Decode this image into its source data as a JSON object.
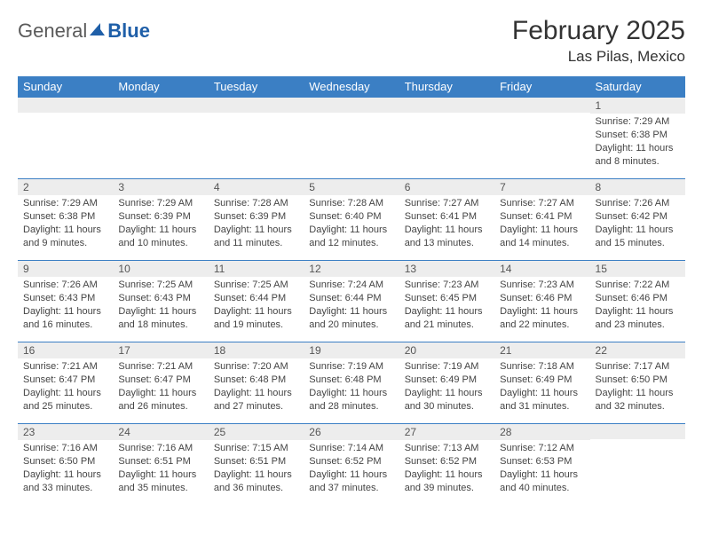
{
  "logo": {
    "text1": "General",
    "text2": "Blue",
    "color_gray": "#6a6a6a",
    "color_blue": "#1f5fa8"
  },
  "title": "February 2025",
  "location": "Las Pilas, Mexico",
  "header_bg": "#3b7fc4",
  "daynum_bg": "#ededed",
  "days": [
    "Sunday",
    "Monday",
    "Tuesday",
    "Wednesday",
    "Thursday",
    "Friday",
    "Saturday"
  ],
  "weeks": [
    [
      {
        "n": "",
        "lines": []
      },
      {
        "n": "",
        "lines": []
      },
      {
        "n": "",
        "lines": []
      },
      {
        "n": "",
        "lines": []
      },
      {
        "n": "",
        "lines": []
      },
      {
        "n": "",
        "lines": []
      },
      {
        "n": "1",
        "lines": [
          "Sunrise: 7:29 AM",
          "Sunset: 6:38 PM",
          "Daylight: 11 hours and 8 minutes."
        ]
      }
    ],
    [
      {
        "n": "2",
        "lines": [
          "Sunrise: 7:29 AM",
          "Sunset: 6:38 PM",
          "Daylight: 11 hours and 9 minutes."
        ]
      },
      {
        "n": "3",
        "lines": [
          "Sunrise: 7:29 AM",
          "Sunset: 6:39 PM",
          "Daylight: 11 hours and 10 minutes."
        ]
      },
      {
        "n": "4",
        "lines": [
          "Sunrise: 7:28 AM",
          "Sunset: 6:39 PM",
          "Daylight: 11 hours and 11 minutes."
        ]
      },
      {
        "n": "5",
        "lines": [
          "Sunrise: 7:28 AM",
          "Sunset: 6:40 PM",
          "Daylight: 11 hours and 12 minutes."
        ]
      },
      {
        "n": "6",
        "lines": [
          "Sunrise: 7:27 AM",
          "Sunset: 6:41 PM",
          "Daylight: 11 hours and 13 minutes."
        ]
      },
      {
        "n": "7",
        "lines": [
          "Sunrise: 7:27 AM",
          "Sunset: 6:41 PM",
          "Daylight: 11 hours and 14 minutes."
        ]
      },
      {
        "n": "8",
        "lines": [
          "Sunrise: 7:26 AM",
          "Sunset: 6:42 PM",
          "Daylight: 11 hours and 15 minutes."
        ]
      }
    ],
    [
      {
        "n": "9",
        "lines": [
          "Sunrise: 7:26 AM",
          "Sunset: 6:43 PM",
          "Daylight: 11 hours and 16 minutes."
        ]
      },
      {
        "n": "10",
        "lines": [
          "Sunrise: 7:25 AM",
          "Sunset: 6:43 PM",
          "Daylight: 11 hours and 18 minutes."
        ]
      },
      {
        "n": "11",
        "lines": [
          "Sunrise: 7:25 AM",
          "Sunset: 6:44 PM",
          "Daylight: 11 hours and 19 minutes."
        ]
      },
      {
        "n": "12",
        "lines": [
          "Sunrise: 7:24 AM",
          "Sunset: 6:44 PM",
          "Daylight: 11 hours and 20 minutes."
        ]
      },
      {
        "n": "13",
        "lines": [
          "Sunrise: 7:23 AM",
          "Sunset: 6:45 PM",
          "Daylight: 11 hours and 21 minutes."
        ]
      },
      {
        "n": "14",
        "lines": [
          "Sunrise: 7:23 AM",
          "Sunset: 6:46 PM",
          "Daylight: 11 hours and 22 minutes."
        ]
      },
      {
        "n": "15",
        "lines": [
          "Sunrise: 7:22 AM",
          "Sunset: 6:46 PM",
          "Daylight: 11 hours and 23 minutes."
        ]
      }
    ],
    [
      {
        "n": "16",
        "lines": [
          "Sunrise: 7:21 AM",
          "Sunset: 6:47 PM",
          "Daylight: 11 hours and 25 minutes."
        ]
      },
      {
        "n": "17",
        "lines": [
          "Sunrise: 7:21 AM",
          "Sunset: 6:47 PM",
          "Daylight: 11 hours and 26 minutes."
        ]
      },
      {
        "n": "18",
        "lines": [
          "Sunrise: 7:20 AM",
          "Sunset: 6:48 PM",
          "Daylight: 11 hours and 27 minutes."
        ]
      },
      {
        "n": "19",
        "lines": [
          "Sunrise: 7:19 AM",
          "Sunset: 6:48 PM",
          "Daylight: 11 hours and 28 minutes."
        ]
      },
      {
        "n": "20",
        "lines": [
          "Sunrise: 7:19 AM",
          "Sunset: 6:49 PM",
          "Daylight: 11 hours and 30 minutes."
        ]
      },
      {
        "n": "21",
        "lines": [
          "Sunrise: 7:18 AM",
          "Sunset: 6:49 PM",
          "Daylight: 11 hours and 31 minutes."
        ]
      },
      {
        "n": "22",
        "lines": [
          "Sunrise: 7:17 AM",
          "Sunset: 6:50 PM",
          "Daylight: 11 hours and 32 minutes."
        ]
      }
    ],
    [
      {
        "n": "23",
        "lines": [
          "Sunrise: 7:16 AM",
          "Sunset: 6:50 PM",
          "Daylight: 11 hours and 33 minutes."
        ]
      },
      {
        "n": "24",
        "lines": [
          "Sunrise: 7:16 AM",
          "Sunset: 6:51 PM",
          "Daylight: 11 hours and 35 minutes."
        ]
      },
      {
        "n": "25",
        "lines": [
          "Sunrise: 7:15 AM",
          "Sunset: 6:51 PM",
          "Daylight: 11 hours and 36 minutes."
        ]
      },
      {
        "n": "26",
        "lines": [
          "Sunrise: 7:14 AM",
          "Sunset: 6:52 PM",
          "Daylight: 11 hours and 37 minutes."
        ]
      },
      {
        "n": "27",
        "lines": [
          "Sunrise: 7:13 AM",
          "Sunset: 6:52 PM",
          "Daylight: 11 hours and 39 minutes."
        ]
      },
      {
        "n": "28",
        "lines": [
          "Sunrise: 7:12 AM",
          "Sunset: 6:53 PM",
          "Daylight: 11 hours and 40 minutes."
        ]
      },
      {
        "n": "",
        "lines": []
      }
    ]
  ]
}
